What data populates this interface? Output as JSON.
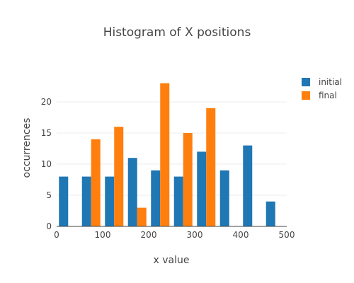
{
  "chart_data": {
    "type": "bar",
    "title": "Histogram of X positions",
    "xlabel": "x value",
    "ylabel": "occurrences",
    "xlim": [
      0,
      500
    ],
    "ylim": [
      0,
      25
    ],
    "bin_edges": [
      0,
      50,
      100,
      150,
      200,
      250,
      300,
      350,
      400,
      450,
      500
    ],
    "x_ticks": [
      "0",
      "100",
      "200",
      "300",
      "400",
      "500"
    ],
    "y_ticks": [
      "0",
      "5",
      "10",
      "15",
      "20"
    ],
    "grid": true,
    "legend_position": "top-right",
    "series": [
      {
        "name": "initial",
        "color": "#1f77b4",
        "values": [
          8,
          8,
          8,
          11,
          9,
          8,
          12,
          9,
          13,
          4
        ]
      },
      {
        "name": "final",
        "color": "#ff7f0e",
        "values": [
          0,
          14,
          16,
          3,
          23,
          15,
          19,
          0,
          0,
          0
        ]
      }
    ]
  }
}
